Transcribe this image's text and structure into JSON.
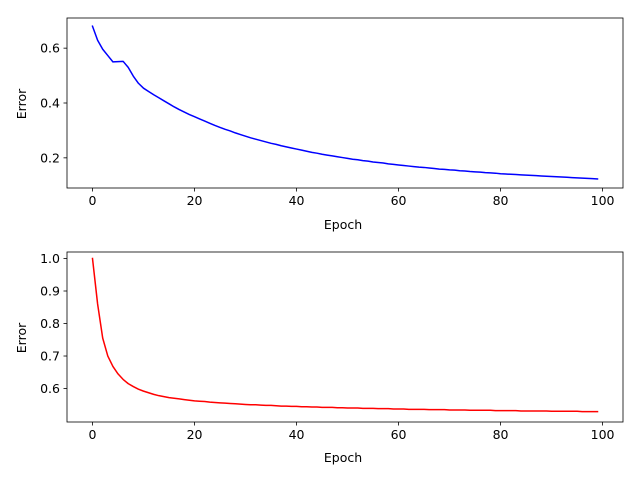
{
  "chart_data": [
    {
      "type": "line",
      "xlabel": "Epoch",
      "ylabel": "Error",
      "xlim": [
        -5,
        104
      ],
      "ylim": [
        0.09,
        0.71
      ],
      "xticks": [
        0,
        20,
        40,
        60,
        80,
        100
      ],
      "yticks": [
        0.2,
        0.4,
        0.6
      ],
      "ytick_labels": [
        "0.2",
        "0.4",
        "0.6"
      ],
      "xtick_labels": [
        "0",
        "20",
        "40",
        "60",
        "80",
        "100"
      ],
      "color": "#0000ff",
      "x_start": 0,
      "x_step": 1,
      "values": [
        0.68,
        0.629,
        0.596,
        0.573,
        0.55,
        0.551,
        0.552,
        0.53,
        0.498,
        0.472,
        0.454,
        0.442,
        0.43,
        0.419,
        0.408,
        0.397,
        0.386,
        0.376,
        0.367,
        0.358,
        0.35,
        0.342,
        0.334,
        0.326,
        0.318,
        0.311,
        0.304,
        0.298,
        0.291,
        0.285,
        0.279,
        0.273,
        0.268,
        0.263,
        0.258,
        0.253,
        0.249,
        0.244,
        0.24,
        0.236,
        0.232,
        0.228,
        0.224,
        0.22,
        0.217,
        0.213,
        0.21,
        0.207,
        0.204,
        0.201,
        0.198,
        0.195,
        0.193,
        0.19,
        0.188,
        0.185,
        0.183,
        0.181,
        0.178,
        0.176,
        0.174,
        0.172,
        0.17,
        0.168,
        0.166,
        0.165,
        0.163,
        0.161,
        0.159,
        0.158,
        0.156,
        0.155,
        0.153,
        0.152,
        0.15,
        0.149,
        0.148,
        0.146,
        0.145,
        0.144,
        0.142,
        0.141,
        0.14,
        0.139,
        0.138,
        0.137,
        0.136,
        0.135,
        0.134,
        0.133,
        0.132,
        0.131,
        0.13,
        0.129,
        0.128,
        0.127,
        0.126,
        0.125,
        0.124,
        0.123
      ]
    },
    {
      "type": "line",
      "xlabel": "Epoch",
      "ylabel": "Error",
      "xlim": [
        -5,
        104
      ],
      "ylim": [
        0.497,
        1.02
      ],
      "xticks": [
        0,
        20,
        40,
        60,
        80,
        100
      ],
      "yticks": [
        0.6,
        0.7,
        0.8,
        0.9,
        1.0
      ],
      "ytick_labels": [
        "0.6",
        "0.7",
        "0.8",
        "0.9",
        "1.0"
      ],
      "xtick_labels": [
        "0",
        "20",
        "40",
        "60",
        "80",
        "100"
      ],
      "color": "#ff0000",
      "x_start": 0,
      "x_step": 1,
      "values": [
        1.0,
        0.86,
        0.755,
        0.7,
        0.668,
        0.645,
        0.628,
        0.615,
        0.606,
        0.598,
        0.592,
        0.587,
        0.582,
        0.578,
        0.575,
        0.572,
        0.57,
        0.568,
        0.566,
        0.564,
        0.562,
        0.561,
        0.56,
        0.558,
        0.557,
        0.556,
        0.555,
        0.554,
        0.553,
        0.552,
        0.551,
        0.55,
        0.55,
        0.549,
        0.548,
        0.548,
        0.547,
        0.546,
        0.546,
        0.545,
        0.545,
        0.544,
        0.544,
        0.543,
        0.543,
        0.542,
        0.542,
        0.542,
        0.541,
        0.541,
        0.54,
        0.54,
        0.54,
        0.539,
        0.539,
        0.539,
        0.538,
        0.538,
        0.538,
        0.537,
        0.537,
        0.537,
        0.536,
        0.536,
        0.536,
        0.536,
        0.535,
        0.535,
        0.535,
        0.535,
        0.534,
        0.534,
        0.534,
        0.534,
        0.533,
        0.533,
        0.533,
        0.533,
        0.533,
        0.532,
        0.532,
        0.532,
        0.532,
        0.532,
        0.531,
        0.531,
        0.531,
        0.531,
        0.531,
        0.531,
        0.53,
        0.53,
        0.53,
        0.53,
        0.53,
        0.53,
        0.529,
        0.529,
        0.529,
        0.529
      ]
    }
  ]
}
